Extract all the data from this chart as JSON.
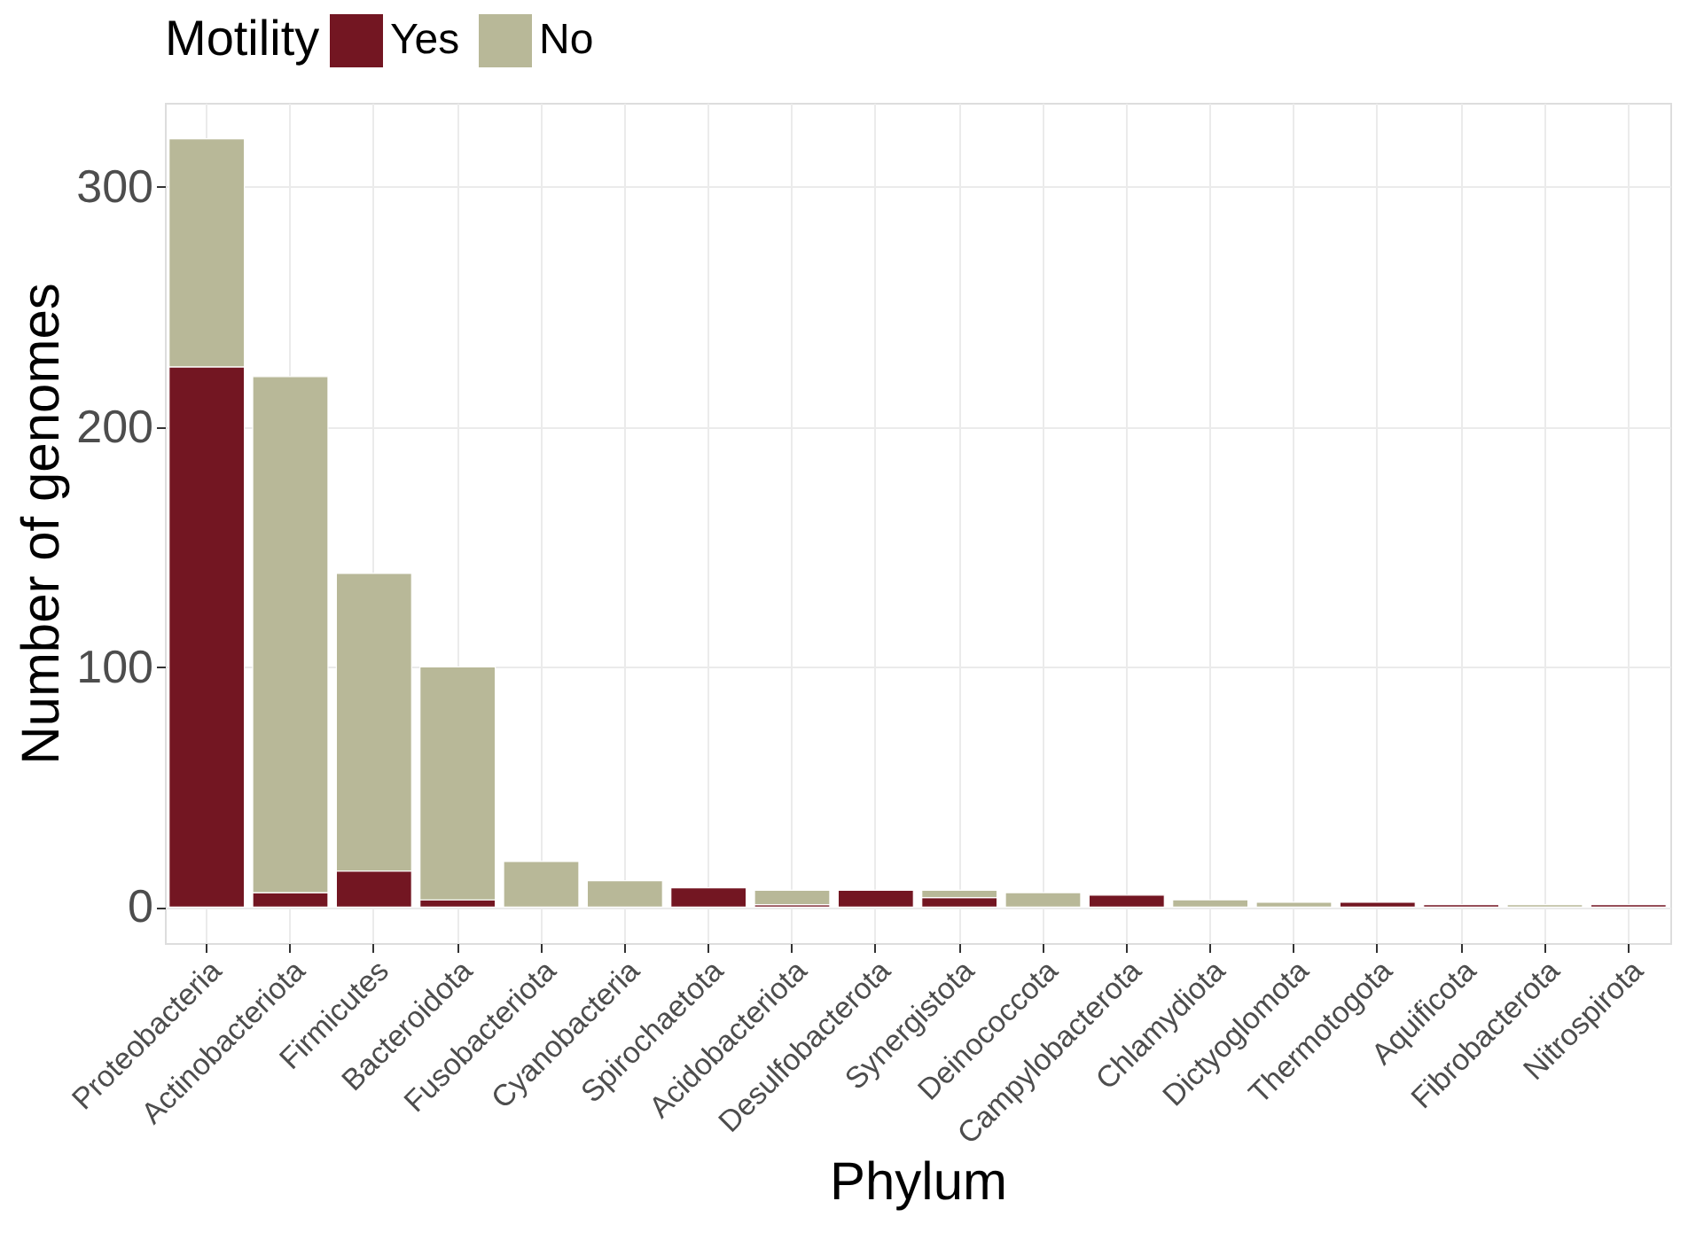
{
  "chart_data": {
    "type": "bar",
    "stacked": true,
    "xlabel": "Phylum",
    "ylabel": "Number of genomes",
    "legend_title": "Motility",
    "legend": "top left",
    "grid": true,
    "categories": [
      "Proteobacteria",
      "Actinobacteriota",
      "Firmicutes",
      "Bacteroidota",
      "Fusobacteriota",
      "Cyanobacteria",
      "Spirochaetota",
      "Acidobacteriota",
      "Desulfobacterota",
      "Synergistota",
      "Deinococcota",
      "Campylobacterota",
      "Chlamydiota",
      "Dictyoglomota",
      "Thermotogota",
      "Aquificota",
      "Fibrobacterota",
      "Nitrospirota"
    ],
    "series": [
      {
        "name": "Yes",
        "color": "#731622",
        "values": [
          225,
          6,
          15,
          3,
          null,
          null,
          8,
          1,
          7,
          4,
          null,
          5,
          null,
          null,
          2,
          1,
          null,
          1
        ]
      },
      {
        "name": "No",
        "color": "#b8b898",
        "values": [
          95,
          215,
          124,
          97,
          19,
          11,
          null,
          6,
          null,
          3,
          6,
          null,
          3,
          2,
          null,
          null,
          1,
          null
        ]
      }
    ],
    "ylim": [
      -15,
      335
    ],
    "yticks": [
      0,
      100,
      200,
      300
    ]
  }
}
